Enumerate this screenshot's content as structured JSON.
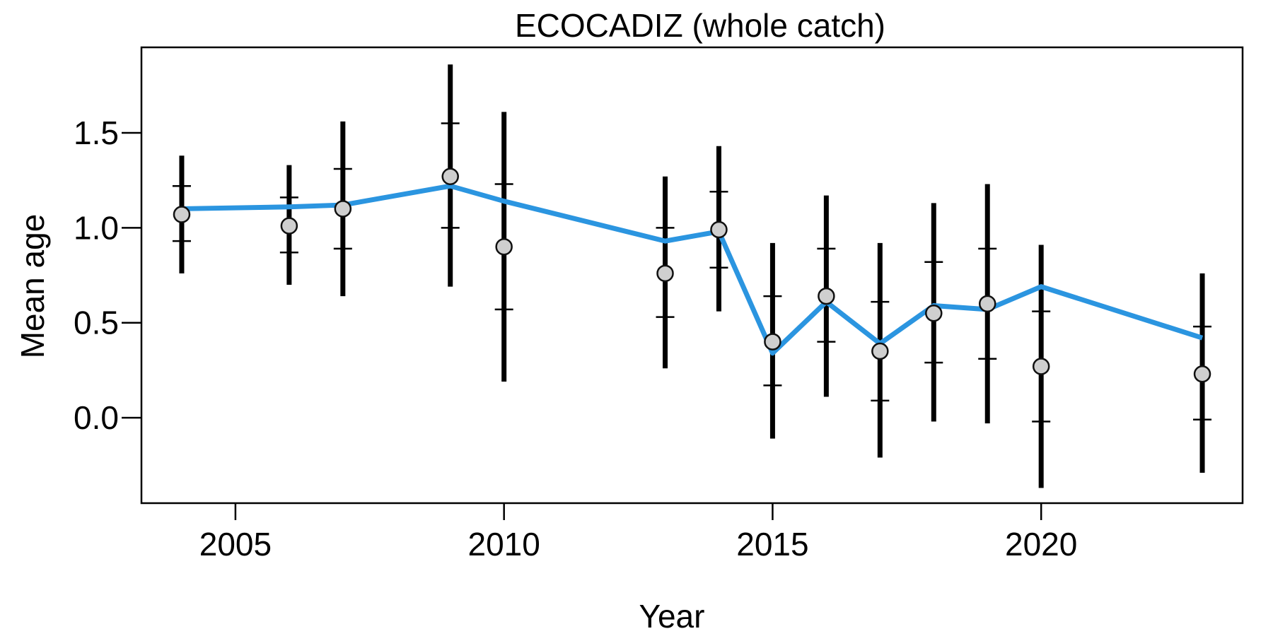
{
  "chart_data": {
    "type": "scatter",
    "title": "ECOCADIZ (whole catch)",
    "xlabel": "Year",
    "ylabel": "Mean age",
    "xlim": [
      2003.25,
      2023.75
    ],
    "ylim": [
      -0.45,
      1.95
    ],
    "x_ticks": [
      "2005",
      "2010",
      "2015",
      "2020"
    ],
    "y_ticks": [
      "0.0",
      "0.5",
      "1.0",
      "1.5"
    ],
    "grid": false,
    "legend": "none",
    "colors": {
      "line": "#2b95e0",
      "point_fill": "#cfcfcf",
      "point_stroke": "#111111",
      "error_bar": "#000000"
    },
    "observed": [
      {
        "year": 2004,
        "value": 1.07,
        "inner_low": 0.93,
        "inner_high": 1.22,
        "outer_low": 0.76,
        "outer_high": 1.38
      },
      {
        "year": 2006,
        "value": 1.01,
        "inner_low": 0.87,
        "inner_high": 1.16,
        "outer_low": 0.7,
        "outer_high": 1.33
      },
      {
        "year": 2007,
        "value": 1.1,
        "inner_low": 0.89,
        "inner_high": 1.31,
        "outer_low": 0.64,
        "outer_high": 1.56
      },
      {
        "year": 2009,
        "value": 1.27,
        "inner_low": 1.0,
        "inner_high": 1.55,
        "outer_low": 0.69,
        "outer_high": 1.86
      },
      {
        "year": 2010,
        "value": 0.9,
        "inner_low": 0.57,
        "inner_high": 1.23,
        "outer_low": 0.19,
        "outer_high": 1.61
      },
      {
        "year": 2013,
        "value": 0.76,
        "inner_low": 0.53,
        "inner_high": 1.0,
        "outer_low": 0.26,
        "outer_high": 1.27
      },
      {
        "year": 2014,
        "value": 0.99,
        "inner_low": 0.79,
        "inner_high": 1.19,
        "outer_low": 0.56,
        "outer_high": 1.43
      },
      {
        "year": 2015,
        "value": 0.4,
        "inner_low": 0.17,
        "inner_high": 0.64,
        "outer_low": -0.11,
        "outer_high": 0.92
      },
      {
        "year": 2016,
        "value": 0.64,
        "inner_low": 0.4,
        "inner_high": 0.89,
        "outer_low": 0.11,
        "outer_high": 1.17
      },
      {
        "year": 2017,
        "value": 0.35,
        "inner_low": 0.09,
        "inner_high": 0.61,
        "outer_low": -0.21,
        "outer_high": 0.92
      },
      {
        "year": 2018,
        "value": 0.55,
        "inner_low": 0.29,
        "inner_high": 0.82,
        "outer_low": -0.02,
        "outer_high": 1.13
      },
      {
        "year": 2019,
        "value": 0.6,
        "inner_low": 0.31,
        "inner_high": 0.89,
        "outer_low": -0.03,
        "outer_high": 1.23
      },
      {
        "year": 2020,
        "value": 0.27,
        "inner_low": -0.02,
        "inner_high": 0.56,
        "outer_low": -0.37,
        "outer_high": 0.91
      },
      {
        "year": 2023,
        "value": 0.23,
        "inner_low": -0.01,
        "inner_high": 0.48,
        "outer_low": -0.29,
        "outer_high": 0.76
      }
    ],
    "expected": {
      "x": [
        2004,
        2006,
        2007,
        2009,
        2010,
        2013,
        2014,
        2015,
        2016,
        2017,
        2018,
        2019,
        2020,
        2023
      ],
      "y": [
        1.1,
        1.11,
        1.12,
        1.22,
        1.14,
        0.93,
        0.98,
        0.34,
        0.61,
        0.39,
        0.59,
        0.57,
        0.69,
        0.42
      ]
    }
  }
}
